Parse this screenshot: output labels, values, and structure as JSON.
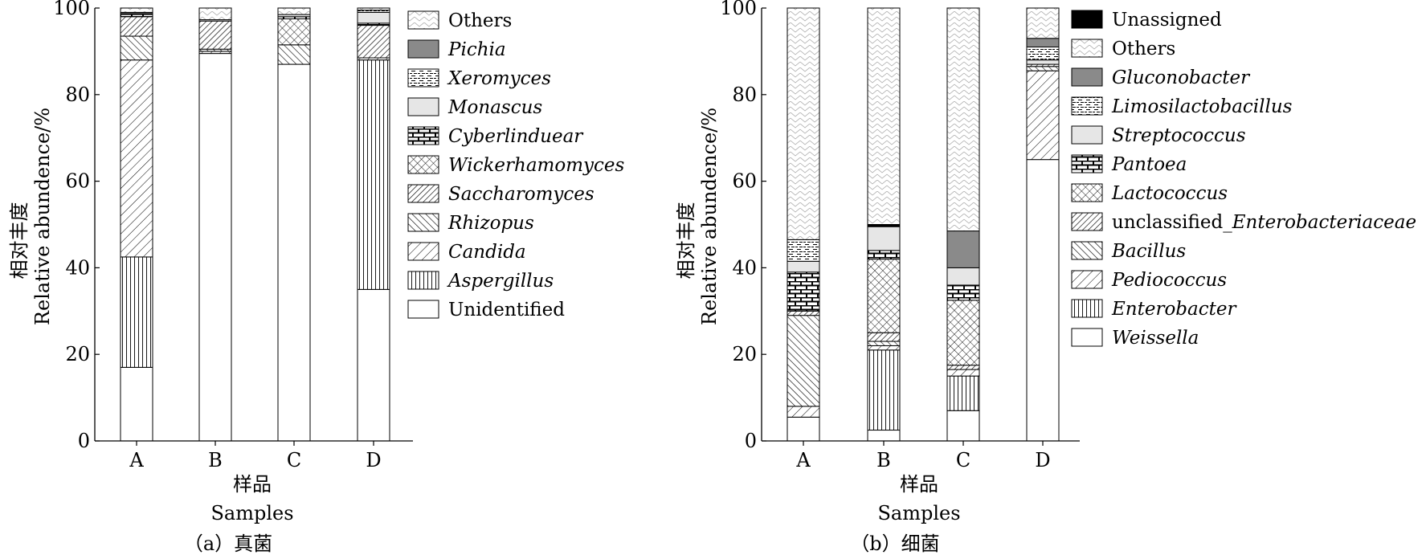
{
  "chart_data": [
    {
      "type": "stacked_bar",
      "id": "fungi",
      "panel_label": "（a）真菌",
      "xlabel_cn": "样品",
      "xlabel_en": "Samples",
      "ylabel_cn": "相对丰度",
      "ylabel_en": "Relative abundence/%",
      "ylim": [
        0,
        100
      ],
      "yticks": [
        "0",
        "20",
        "40",
        "60",
        "80",
        "100"
      ],
      "categories": [
        "A",
        "B",
        "C",
        "D"
      ],
      "legend": [
        {
          "name": "Others",
          "italic": false,
          "pattern": "pat-zig"
        },
        {
          "name": "Pichia",
          "italic": true,
          "pattern": "pat-gray"
        },
        {
          "name": "Xeromyces",
          "italic": true,
          "pattern": "pat-dash"
        },
        {
          "name": "Monascus",
          "italic": true,
          "pattern": "pat-light"
        },
        {
          "name": "Cyberlinduear",
          "italic": true,
          "pattern": "pat-brick"
        },
        {
          "name": "Wickerhamomyces",
          "italic": true,
          "pattern": "pat-cross"
        },
        {
          "name": "Saccharomyces",
          "italic": true,
          "pattern": "pat-dense"
        },
        {
          "name": "Rhizopus",
          "italic": true,
          "pattern": "pat-back"
        },
        {
          "name": "Candida",
          "italic": true,
          "pattern": "pat-fwd"
        },
        {
          "name": "Aspergillus",
          "italic": true,
          "pattern": "pat-vert"
        },
        {
          "name": "Unidentified",
          "italic": false,
          "pattern": "pat-white"
        }
      ],
      "series": [
        {
          "name": "Unidentified",
          "values": [
            17,
            89.5,
            87,
            35
          ]
        },
        {
          "name": "Aspergillus",
          "values": [
            25.5,
            0,
            0,
            53
          ]
        },
        {
          "name": "Candida",
          "values": [
            45.5,
            0.5,
            0,
            0.5
          ]
        },
        {
          "name": "Rhizopus",
          "values": [
            5.5,
            0.5,
            4.5,
            0
          ]
        },
        {
          "name": "Saccharomyces",
          "values": [
            4.5,
            6.5,
            0,
            7.5
          ]
        },
        {
          "name": "Wickerhamomyces",
          "values": [
            0,
            0,
            6,
            0
          ]
        },
        {
          "name": "Cyberlinduear",
          "values": [
            0.5,
            0,
            0.5,
            0.5
          ]
        },
        {
          "name": "Monascus",
          "values": [
            0.2,
            0.3,
            0.5,
            2.5
          ]
        },
        {
          "name": "Xeromyces",
          "values": [
            0,
            0,
            0,
            0.5
          ]
        },
        {
          "name": "Pichia",
          "values": [
            0.3,
            0,
            0,
            0
          ]
        },
        {
          "name": "Others",
          "values": [
            1,
            2.7,
            1.5,
            0.5
          ]
        }
      ]
    },
    {
      "type": "stacked_bar",
      "id": "bacteria",
      "panel_label": "（b）细菌",
      "xlabel_cn": "样品",
      "xlabel_en": "Samples",
      "ylabel_cn": "相对丰度",
      "ylabel_en": "Relative abundence/%",
      "ylim": [
        0,
        100
      ],
      "yticks": [
        "0",
        "20",
        "40",
        "60",
        "80",
        "100"
      ],
      "categories": [
        "A",
        "B",
        "C",
        "D"
      ],
      "legend": [
        {
          "name": "Unassigned",
          "italic": false,
          "pattern": "pat-black"
        },
        {
          "name": "Others",
          "italic": false,
          "pattern": "pat-zig"
        },
        {
          "name": "Gluconobacter",
          "italic": true,
          "pattern": "pat-gray"
        },
        {
          "name": "Limosilactobacillus",
          "italic": true,
          "pattern": "pat-dash"
        },
        {
          "name": "Streptococcus",
          "italic": true,
          "pattern": "pat-light"
        },
        {
          "name": "Pantoea",
          "italic": true,
          "pattern": "pat-brick"
        },
        {
          "name": "Lactococcus",
          "italic": true,
          "pattern": "pat-cross"
        },
        {
          "name": "unclassified_",
          "italic": false,
          "name_suffix": "Enterobacteriaceae",
          "suffix_italic": true,
          "pattern": "pat-dense"
        },
        {
          "name": "Bacillus",
          "italic": true,
          "pattern": "pat-back"
        },
        {
          "name": "Pediococcus",
          "italic": true,
          "pattern": "pat-fwd"
        },
        {
          "name": "Enterobacter",
          "italic": true,
          "pattern": "pat-vert"
        },
        {
          "name": "Weissella",
          "italic": true,
          "pattern": "pat-white"
        }
      ],
      "series": [
        {
          "name": "Weissella",
          "values": [
            5.5,
            2.5,
            7,
            65
          ]
        },
        {
          "name": "Enterobacter",
          "values": [
            0,
            18.5,
            8,
            0
          ]
        },
        {
          "name": "Pediococcus",
          "values": [
            2.5,
            1,
            1.5,
            20.5
          ]
        },
        {
          "name": "Bacillus",
          "values": [
            21,
            1,
            0,
            1
          ]
        },
        {
          "name": "unclassified_Enterobacteriaceae",
          "values": [
            1,
            2,
            1,
            0.5
          ]
        },
        {
          "name": "Lactococcus",
          "values": [
            0,
            17,
            15,
            0
          ]
        },
        {
          "name": "Pantoea",
          "values": [
            9,
            2,
            3.5,
            0
          ]
        },
        {
          "name": "Streptococcus",
          "values": [
            2.5,
            5.5,
            4,
            1
          ]
        },
        {
          "name": "Limosilactobacillus",
          "values": [
            5,
            0,
            0,
            3
          ]
        },
        {
          "name": "Gluconobacter",
          "values": [
            0,
            0,
            8.5,
            2
          ]
        },
        {
          "name": "Unassigned",
          "values": [
            0,
            0.5,
            0,
            0
          ]
        },
        {
          "name": "Others",
          "values": [
            53.5,
            50,
            51.5,
            7
          ]
        }
      ]
    }
  ]
}
